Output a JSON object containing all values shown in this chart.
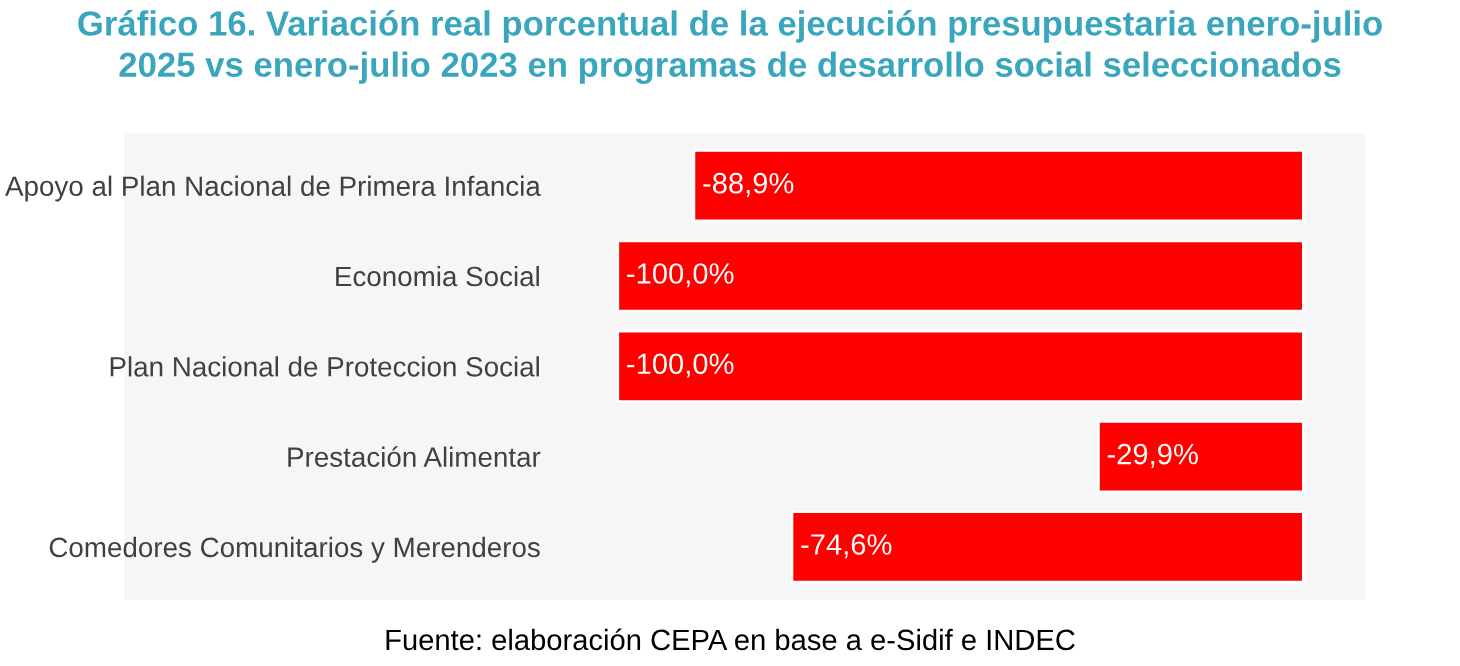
{
  "chart_data": {
    "type": "bar",
    "orientation": "horizontal",
    "title": "Gráfico 16. Variación real porcentual de la ejecución presupuestaria enero-julio\n2025 vs enero-julio 2023 en programas de desarrollo social seleccionados",
    "categories": [
      "Apoyo al Plan Nacional de Primera Infancia",
      "Economia Social",
      "Plan Nacional de Proteccion Social",
      "Prestación Alimentar",
      "Comedores Comunitarios y Merenderos"
    ],
    "values": [
      -88.9,
      -100.0,
      -100.0,
      -29.9,
      -74.6
    ],
    "value_labels": [
      "-88,9%",
      "-100,0%",
      "-100,0%",
      "-29,9%",
      "-74,6%"
    ],
    "color": "#ff0000",
    "tick_labels": "y",
    "grid": false,
    "legend": false,
    "annotations": [
      "Fuente: elaboración CEPA en base a e-Sidif e INDEC"
    ]
  }
}
